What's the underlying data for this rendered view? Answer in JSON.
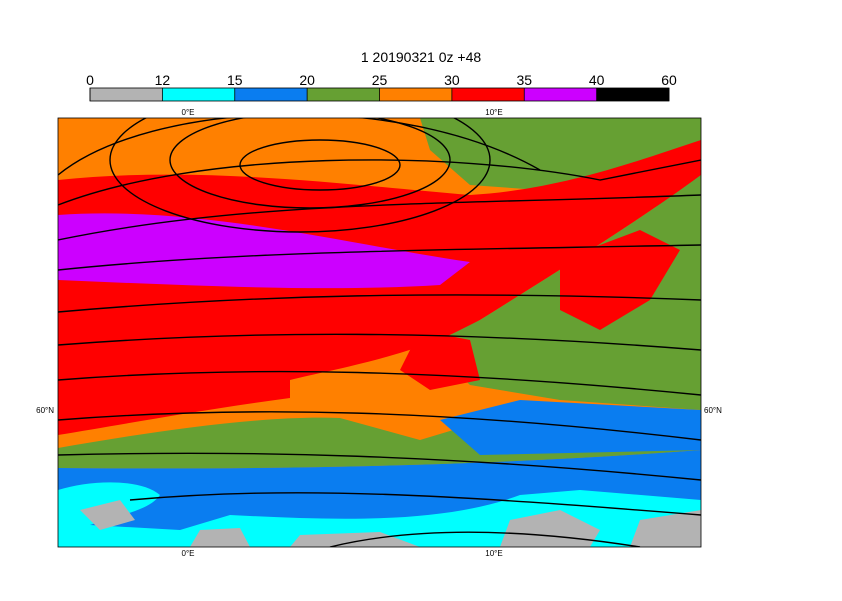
{
  "title": "1 20190321 0z +48",
  "colorbar": {
    "ticks": [
      0,
      12,
      15,
      20,
      25,
      30,
      35,
      40,
      60
    ],
    "colors": [
      "#b3b3b3",
      "#00ffff",
      "#0a7df0",
      "#66a033",
      "#ff8000",
      "#ff0000",
      "#cc00ff",
      "#000000"
    ]
  },
  "longitude_labels": [
    "0°E",
    "10°E"
  ],
  "latitude_labels": [
    "60°N"
  ]
}
